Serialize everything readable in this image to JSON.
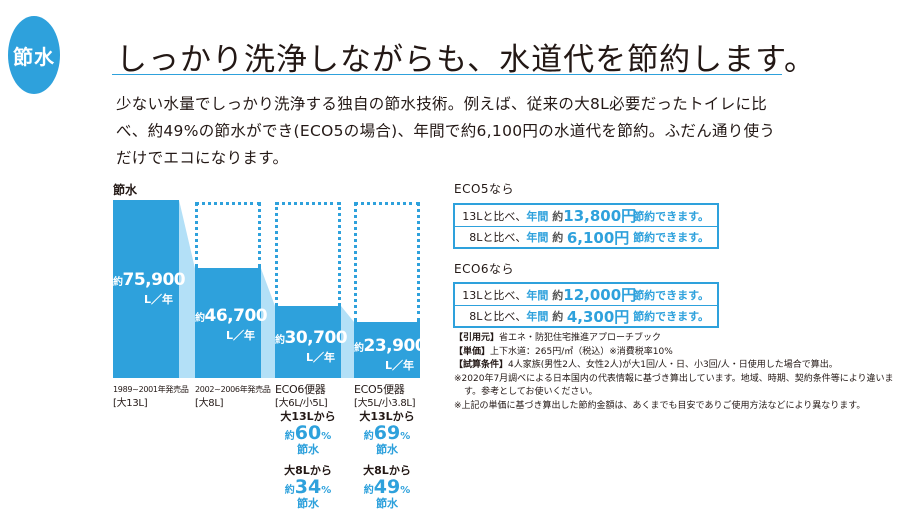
{
  "badge": "節水",
  "title": "しっかり洗浄しながらも、水道代を節約します。",
  "lead": "少ない水量でしっかり洗浄する独自の節水技術。例えば、従来の大8L必要だったトイレに比べ、約49%の節水ができ(ECO5の場合)、年間で約6,100円の水道代を節約。ふだん通り使うだけでエコになります。",
  "chart_data": {
    "type": "bar",
    "title": "節水",
    "unit": "L／年",
    "prefix": "約",
    "categories": [
      {
        "line1": "1989~2001年発売品",
        "line2": "[大13L]"
      },
      {
        "line1": "2002~2006年発売品",
        "line2": "[大8L]"
      },
      {
        "line1": "ECO6便器",
        "line2": "[大6L/小5L]"
      },
      {
        "line1": "ECO5便器",
        "line2": "[大5L/小3.8L]"
      }
    ],
    "values": [
      75900,
      46700,
      30700,
      23900
    ],
    "labels": [
      "75,900",
      "46,700",
      "30,700",
      "23,900"
    ],
    "savings": [
      null,
      null,
      [
        {
          "from": "大13Lから",
          "pct": "60",
          "lbl": "節水"
        },
        {
          "from": "大8Lから",
          "pct": "34",
          "lbl": "節水"
        }
      ],
      [
        {
          "from": "大13Lから",
          "pct": "69",
          "lbl": "節水"
        },
        {
          "from": "大8Lから",
          "pct": "49",
          "lbl": "節水"
        }
      ]
    ],
    "colors": {
      "bar": "#2ea1dc",
      "connector": "#b3e0f7"
    }
  },
  "savings_panel": [
    {
      "heading": "ECO5なら",
      "rows": [
        {
          "compare": "13Lと比べ、",
          "period": "年間",
          "approx": "約",
          "amount": "13,800円",
          "suffix": "節約できます。"
        },
        {
          "compare": "8Lと比べ、",
          "period": "年間",
          "approx": "約",
          "amount": "6,100円",
          "suffix": "節約できます。"
        }
      ]
    },
    {
      "heading": "ECO6なら",
      "rows": [
        {
          "compare": "13Lと比べ、",
          "period": "年間",
          "approx": "約",
          "amount": "12,000円",
          "suffix": "節約できます。"
        },
        {
          "compare": "8Lと比べ、",
          "period": "年間",
          "approx": "約",
          "amount": "4,300円",
          "suffix": "節約できます。"
        }
      ]
    }
  ],
  "notes": [
    {
      "key": "【引用元】",
      "text": "省エネ・防犯住宅推進アプローチブック"
    },
    {
      "key": "【単価】",
      "text": "上下水道：265円/㎥（税込）※消費税率10%"
    },
    {
      "key": "【試算条件】",
      "text": "4人家族(男性2人、女性2人)が大1回/人・日、小3回/人・日使用した場合で算出。"
    },
    {
      "key": "",
      "text": "※2020年7月調べによる日本国内の代表情報に基づき算出しています。地域、時期、契約条件等により違います。参考としてお使いください。"
    },
    {
      "key": "",
      "text": "※上記の単価に基づき算出した節約金額は、あくまでも目安でありご使用方法などにより異なります。"
    }
  ]
}
